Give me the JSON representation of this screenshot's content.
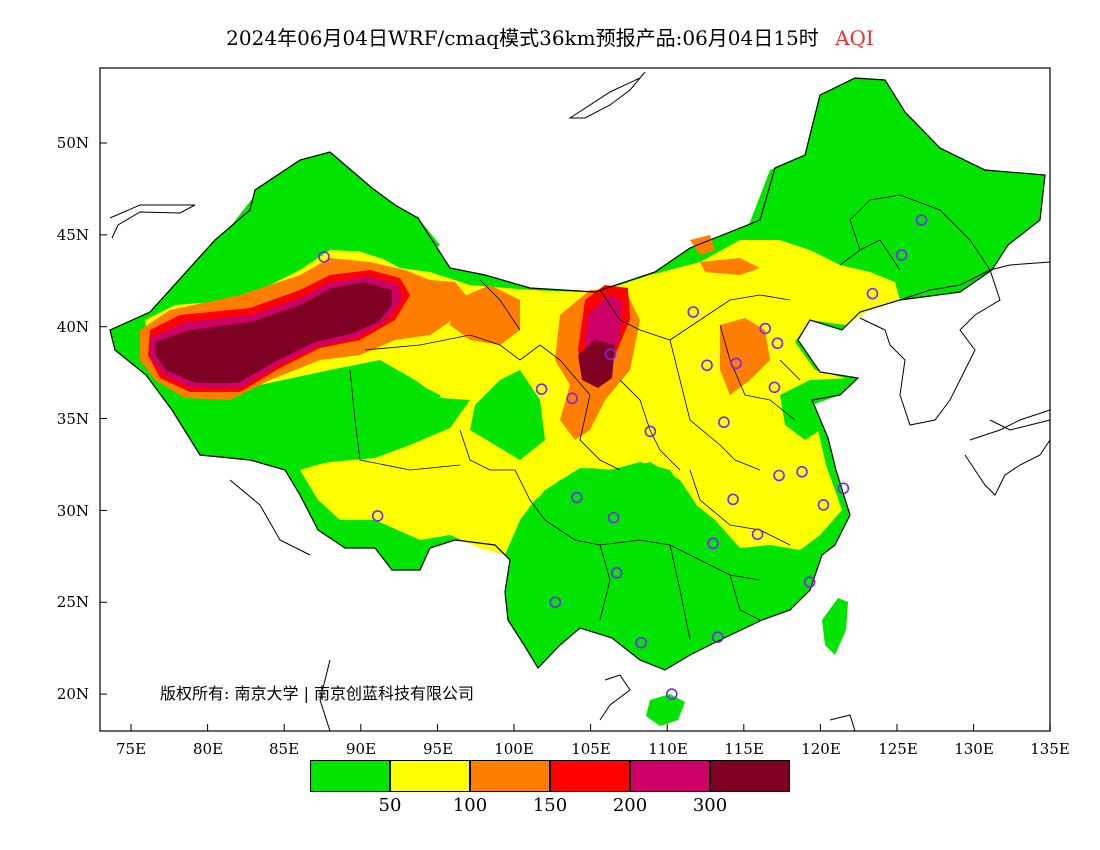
{
  "title": {
    "main": "2024年06月04日WRF/cmaq模式36km预报产品:06月04日15时",
    "variable": "AQI"
  },
  "colors": {
    "good": "#00e400",
    "moderate": "#ffff00",
    "usg": "#ff7e00",
    "unhealthy": "#ff0000",
    "very_unhealthy": "#cc0066",
    "hazardous": "#7e0023",
    "variable_label": "#e8312f",
    "station_marker": "#7f22ff",
    "border": "#000000"
  },
  "axes": {
    "latitude_labels": [
      "50N",
      "45N",
      "40N",
      "35N",
      "30N",
      "25N",
      "20N"
    ],
    "longitude_labels": [
      "75E",
      "80E",
      "85E",
      "90E",
      "95E",
      "100E",
      "105E",
      "110E",
      "115E",
      "120E",
      "125E",
      "130E",
      "135E"
    ]
  },
  "copyright": "版权所有: 南京大学 | 南京创蓝科技有限公司",
  "legend": {
    "labels": [
      "50",
      "100",
      "150",
      "200",
      "300"
    ]
  },
  "stations": [
    {
      "lon": 87.6,
      "lat": 43.8
    },
    {
      "lon": 91.1,
      "lat": 29.7
    },
    {
      "lon": 101.8,
      "lat": 36.6
    },
    {
      "lon": 103.8,
      "lat": 36.1
    },
    {
      "lon": 106.3,
      "lat": 38.5
    },
    {
      "lon": 111.7,
      "lat": 40.8
    },
    {
      "lon": 108.9,
      "lat": 34.3
    },
    {
      "lon": 104.1,
      "lat": 30.7
    },
    {
      "lon": 106.5,
      "lat": 29.6
    },
    {
      "lon": 106.7,
      "lat": 26.6
    },
    {
      "lon": 102.7,
      "lat": 25.0
    },
    {
      "lon": 108.3,
      "lat": 22.8
    },
    {
      "lon": 110.3,
      "lat": 20.0
    },
    {
      "lon": 113.3,
      "lat": 23.1
    },
    {
      "lon": 113.0,
      "lat": 28.2
    },
    {
      "lon": 114.3,
      "lat": 30.6
    },
    {
      "lon": 115.9,
      "lat": 28.7
    },
    {
      "lon": 112.6,
      "lat": 37.9
    },
    {
      "lon": 114.5,
      "lat": 38.0
    },
    {
      "lon": 116.4,
      "lat": 39.9
    },
    {
      "lon": 117.2,
      "lat": 39.1
    },
    {
      "lon": 117.0,
      "lat": 36.7
    },
    {
      "lon": 113.7,
      "lat": 34.8
    },
    {
      "lon": 117.3,
      "lat": 31.9
    },
    {
      "lon": 118.8,
      "lat": 32.1
    },
    {
      "lon": 121.5,
      "lat": 31.2
    },
    {
      "lon": 120.2,
      "lat": 30.3
    },
    {
      "lon": 119.3,
      "lat": 26.1
    },
    {
      "lon": 123.4,
      "lat": 41.8
    },
    {
      "lon": 125.3,
      "lat": 43.9
    },
    {
      "lon": 126.6,
      "lat": 45.8
    }
  ]
}
